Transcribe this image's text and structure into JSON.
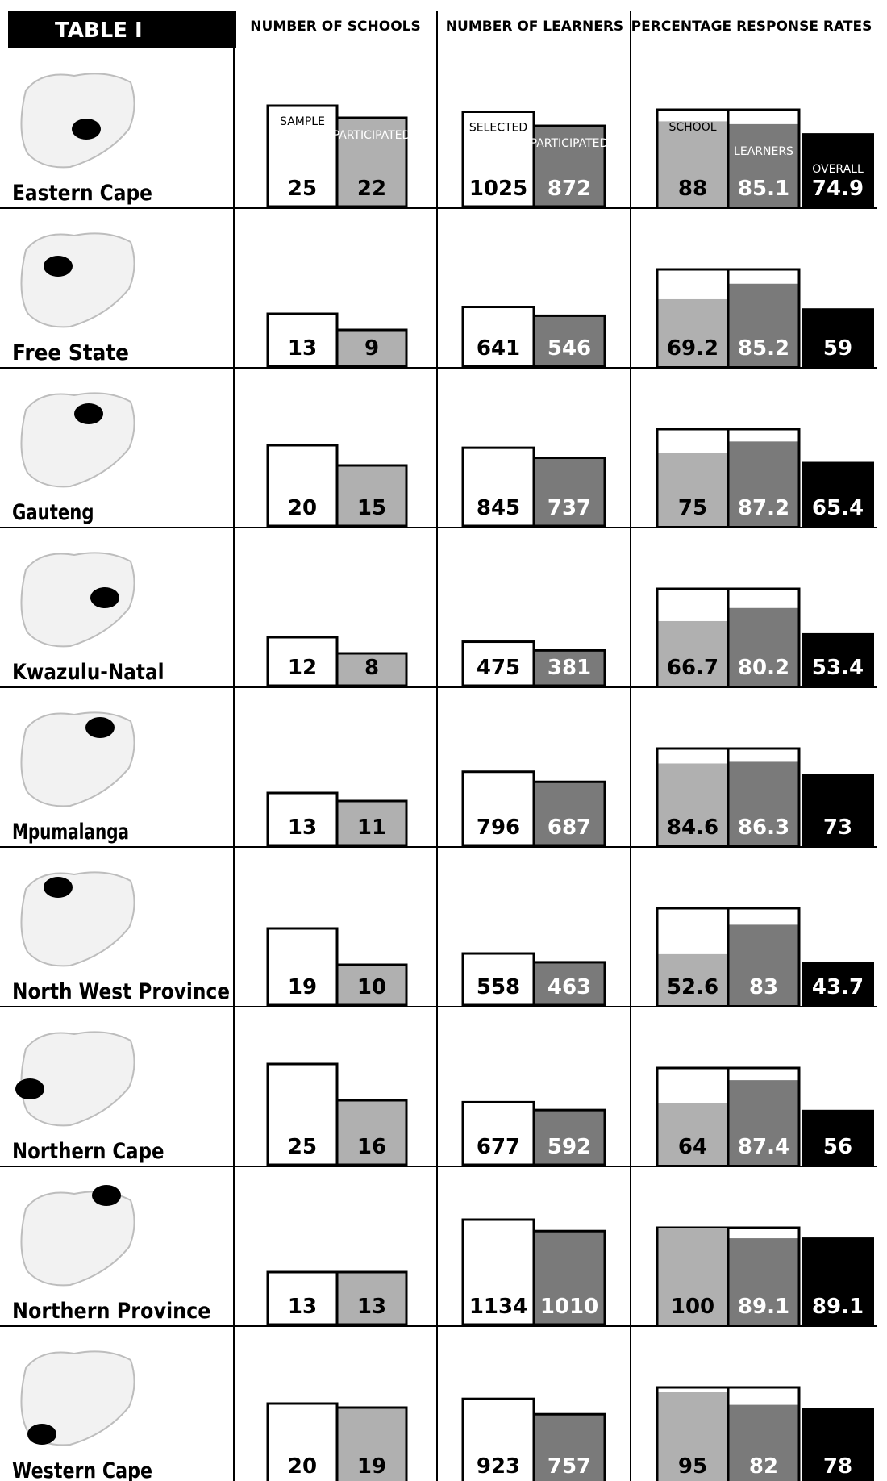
{
  "title": "TABLE I",
  "headers": {
    "schools": "NUMBER OF SCHOOLS",
    "learners": "NUMBER OF LEARNERS",
    "rates": "PERCENTAGE RESPONSE RATES"
  },
  "bar_labels": {
    "sample": "SAMPLE",
    "schools_participated": "PARTICIPATED",
    "selected": "SELECTED",
    "learners_participated": "PARTICIPATED",
    "school": "SCHOOL",
    "learners": "LEARNERS",
    "overall": "OVERALL"
  },
  "colors": {
    "frame": "#000000",
    "outline_bar": "#ffffff",
    "light_bar": "#b0b0b0",
    "dark_bar": "#7a7a7a",
    "overall_bar": "#000000",
    "map_land": "#f2f2f2",
    "map_highlight": "#000000"
  },
  "chart_data": {
    "type": "bar",
    "categories": [
      "Eastern Cape",
      "Free State",
      "Gauteng",
      "Kwazulu-Natal",
      "Mpumalanga",
      "North West Province",
      "Northern Cape",
      "Northern Province",
      "Western Cape"
    ],
    "map_icon": "south-africa-map-icon",
    "series": [
      {
        "name": "SAMPLE",
        "group": "NUMBER OF SCHOOLS",
        "values": [
          25,
          13,
          20,
          12,
          13,
          19,
          25,
          13,
          20
        ]
      },
      {
        "name": "PARTICIPATED",
        "group": "NUMBER OF SCHOOLS",
        "values": [
          22,
          9,
          15,
          8,
          11,
          10,
          16,
          13,
          19
        ]
      },
      {
        "name": "SELECTED",
        "group": "NUMBER OF LEARNERS",
        "values": [
          1025,
          641,
          845,
          475,
          796,
          558,
          677,
          1134,
          923
        ]
      },
      {
        "name": "PARTICIPATED",
        "group": "NUMBER OF LEARNERS",
        "values": [
          872,
          546,
          737,
          381,
          687,
          463,
          592,
          1010,
          757
        ]
      },
      {
        "name": "SCHOOL",
        "group": "PERCENTAGE RESPONSE RATES",
        "values": [
          88,
          69.2,
          75,
          66.7,
          84.6,
          52.6,
          64,
          100,
          95
        ]
      },
      {
        "name": "LEARNERS",
        "group": "PERCENTAGE RESPONSE RATES",
        "values": [
          85.1,
          85.2,
          87.2,
          80.2,
          86.3,
          83,
          87.4,
          89.1,
          82
        ]
      },
      {
        "name": "OVERALL",
        "group": "PERCENTAGE RESPONSE RATES",
        "values": [
          74.9,
          59,
          65.4,
          53.4,
          73,
          43.7,
          56,
          89.1,
          78
        ]
      }
    ],
    "legend": "labels inside first row bars",
    "grid": false
  }
}
